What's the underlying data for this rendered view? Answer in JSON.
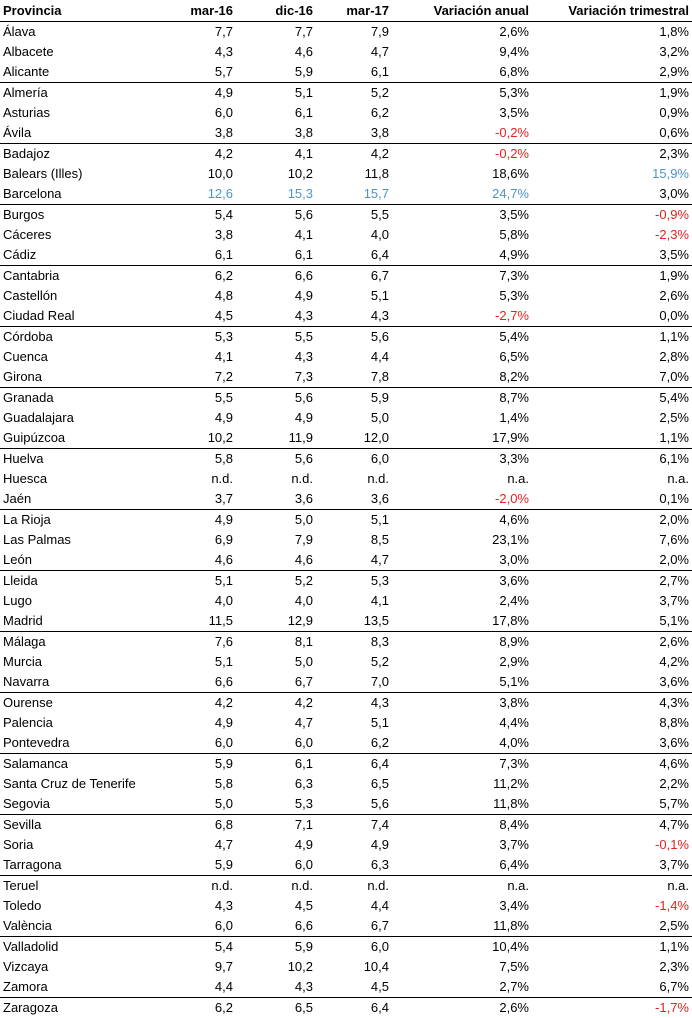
{
  "headers": [
    "Provincia",
    "mar-16",
    "dic-16",
    "mar-17",
    "Variación anual",
    "Variación trimestral"
  ],
  "colors": {
    "negative": "#e8201e",
    "highlight": "#4f93c6",
    "text": "#000000"
  },
  "rows": [
    {
      "cells": [
        "Álava",
        "7,7",
        "7,7",
        "7,9",
        "2,6%",
        "1,8%"
      ],
      "group_start": false,
      "styles": [
        "",
        "",
        "",
        "",
        "",
        ""
      ]
    },
    {
      "cells": [
        "Albacete",
        "4,3",
        "4,6",
        "4,7",
        "9,4%",
        "3,2%"
      ],
      "group_start": false,
      "styles": [
        "",
        "",
        "",
        "",
        "",
        ""
      ]
    },
    {
      "cells": [
        "Alicante",
        "5,7",
        "5,9",
        "6,1",
        "6,8%",
        "2,9%"
      ],
      "group_start": false,
      "styles": [
        "",
        "",
        "",
        "",
        "",
        ""
      ]
    },
    {
      "cells": [
        "Almería",
        "4,9",
        "5,1",
        "5,2",
        "5,3%",
        "1,9%"
      ],
      "group_start": true,
      "styles": [
        "",
        "",
        "",
        "",
        "",
        ""
      ]
    },
    {
      "cells": [
        "Asturias",
        "6,0",
        "6,1",
        "6,2",
        "3,5%",
        "0,9%"
      ],
      "group_start": false,
      "styles": [
        "",
        "",
        "",
        "",
        "",
        ""
      ]
    },
    {
      "cells": [
        "Ávila",
        "3,8",
        "3,8",
        "3,8",
        "-0,2%",
        "0,6%"
      ],
      "group_start": false,
      "styles": [
        "",
        "",
        "",
        "",
        "neg",
        ""
      ]
    },
    {
      "cells": [
        "Badajoz",
        "4,2",
        "4,1",
        "4,2",
        "-0,2%",
        "2,3%"
      ],
      "group_start": true,
      "styles": [
        "",
        "",
        "",
        "",
        "neg",
        ""
      ]
    },
    {
      "cells": [
        "Balears (Illes)",
        "10,0",
        "10,2",
        "11,8",
        "18,6%",
        "15,9%"
      ],
      "group_start": false,
      "styles": [
        "",
        "",
        "",
        "",
        "",
        "hi"
      ]
    },
    {
      "cells": [
        "Barcelona",
        "12,6",
        "15,3",
        "15,7",
        "24,7%",
        "3,0%"
      ],
      "group_start": false,
      "styles": [
        "",
        "hi",
        "hi",
        "hi",
        "hi",
        ""
      ]
    },
    {
      "cells": [
        "Burgos",
        "5,4",
        "5,6",
        "5,5",
        "3,5%",
        "-0,9%"
      ],
      "group_start": true,
      "styles": [
        "",
        "",
        "",
        "",
        "",
        "neg"
      ]
    },
    {
      "cells": [
        "Cáceres",
        "3,8",
        "4,1",
        "4,0",
        "5,8%",
        "-2,3%"
      ],
      "group_start": false,
      "styles": [
        "",
        "",
        "",
        "",
        "",
        "neg"
      ]
    },
    {
      "cells": [
        "Cádiz",
        "6,1",
        "6,1",
        "6,4",
        "4,9%",
        "3,5%"
      ],
      "group_start": false,
      "styles": [
        "",
        "",
        "",
        "",
        "",
        ""
      ]
    },
    {
      "cells": [
        "Cantabria",
        "6,2",
        "6,6",
        "6,7",
        "7,3%",
        "1,9%"
      ],
      "group_start": true,
      "styles": [
        "",
        "",
        "",
        "",
        "",
        ""
      ]
    },
    {
      "cells": [
        "Castellón",
        "4,8",
        "4,9",
        "5,1",
        "5,3%",
        "2,6%"
      ],
      "group_start": false,
      "styles": [
        "",
        "",
        "",
        "",
        "",
        ""
      ]
    },
    {
      "cells": [
        "Ciudad Real",
        "4,5",
        "4,3",
        "4,3",
        "-2,7%",
        "0,0%"
      ],
      "group_start": false,
      "styles": [
        "",
        "",
        "",
        "",
        "neg",
        ""
      ]
    },
    {
      "cells": [
        "Córdoba",
        "5,3",
        "5,5",
        "5,6",
        "5,4%",
        "1,1%"
      ],
      "group_start": true,
      "styles": [
        "",
        "",
        "",
        "",
        "",
        ""
      ]
    },
    {
      "cells": [
        "Cuenca",
        "4,1",
        "4,3",
        "4,4",
        "6,5%",
        "2,8%"
      ],
      "group_start": false,
      "styles": [
        "",
        "",
        "",
        "",
        "",
        ""
      ]
    },
    {
      "cells": [
        "Girona",
        "7,2",
        "7,3",
        "7,8",
        "8,2%",
        "7,0%"
      ],
      "group_start": false,
      "styles": [
        "",
        "",
        "",
        "",
        "",
        ""
      ]
    },
    {
      "cells": [
        "Granada",
        "5,5",
        "5,6",
        "5,9",
        "8,7%",
        "5,4%"
      ],
      "group_start": true,
      "styles": [
        "",
        "",
        "",
        "",
        "",
        ""
      ]
    },
    {
      "cells": [
        "Guadalajara",
        "4,9",
        "4,9",
        "5,0",
        "1,4%",
        "2,5%"
      ],
      "group_start": false,
      "styles": [
        "",
        "",
        "",
        "",
        "",
        ""
      ]
    },
    {
      "cells": [
        "Guipúzcoa",
        "10,2",
        "11,9",
        "12,0",
        "17,9%",
        "1,1%"
      ],
      "group_start": false,
      "styles": [
        "",
        "",
        "",
        "",
        "",
        ""
      ]
    },
    {
      "cells": [
        "Huelva",
        "5,8",
        "5,6",
        "6,0",
        "3,3%",
        "6,1%"
      ],
      "group_start": true,
      "styles": [
        "",
        "",
        "",
        "",
        "",
        ""
      ]
    },
    {
      "cells": [
        "Huesca",
        "n.d.",
        "n.d.",
        "n.d.",
        "n.a.",
        "n.a."
      ],
      "group_start": false,
      "styles": [
        "",
        "",
        "",
        "",
        "",
        ""
      ]
    },
    {
      "cells": [
        "Jaén",
        "3,7",
        "3,6",
        "3,6",
        "-2,0%",
        "0,1%"
      ],
      "group_start": false,
      "styles": [
        "",
        "",
        "",
        "",
        "neg",
        ""
      ]
    },
    {
      "cells": [
        "La Rioja",
        "4,9",
        "5,0",
        "5,1",
        "4,6%",
        "2,0%"
      ],
      "group_start": true,
      "styles": [
        "",
        "",
        "",
        "",
        "",
        ""
      ]
    },
    {
      "cells": [
        "Las Palmas",
        "6,9",
        "7,9",
        "8,5",
        "23,1%",
        "7,6%"
      ],
      "group_start": false,
      "styles": [
        "",
        "",
        "",
        "",
        "",
        ""
      ]
    },
    {
      "cells": [
        "León",
        "4,6",
        "4,6",
        "4,7",
        "3,0%",
        "2,0%"
      ],
      "group_start": false,
      "styles": [
        "",
        "",
        "",
        "",
        "",
        ""
      ]
    },
    {
      "cells": [
        "Lleida",
        "5,1",
        "5,2",
        "5,3",
        "3,6%",
        "2,7%"
      ],
      "group_start": true,
      "styles": [
        "",
        "",
        "",
        "",
        "",
        ""
      ]
    },
    {
      "cells": [
        "Lugo",
        "4,0",
        "4,0",
        "4,1",
        "2,4%",
        "3,7%"
      ],
      "group_start": false,
      "styles": [
        "",
        "",
        "",
        "",
        "",
        ""
      ]
    },
    {
      "cells": [
        "Madrid",
        "11,5",
        "12,9",
        "13,5",
        "17,8%",
        "5,1%"
      ],
      "group_start": false,
      "styles": [
        "",
        "",
        "",
        "",
        "",
        ""
      ]
    },
    {
      "cells": [
        "Málaga",
        "7,6",
        "8,1",
        "8,3",
        "8,9%",
        "2,6%"
      ],
      "group_start": true,
      "styles": [
        "",
        "",
        "",
        "",
        "",
        ""
      ]
    },
    {
      "cells": [
        "Murcia",
        "5,1",
        "5,0",
        "5,2",
        "2,9%",
        "4,2%"
      ],
      "group_start": false,
      "styles": [
        "",
        "",
        "",
        "",
        "",
        ""
      ]
    },
    {
      "cells": [
        "Navarra",
        "6,6",
        "6,7",
        "7,0",
        "5,1%",
        "3,6%"
      ],
      "group_start": false,
      "styles": [
        "",
        "",
        "",
        "",
        "",
        ""
      ]
    },
    {
      "cells": [
        "Ourense",
        "4,2",
        "4,2",
        "4,3",
        "3,8%",
        "4,3%"
      ],
      "group_start": true,
      "styles": [
        "",
        "",
        "",
        "",
        "",
        ""
      ]
    },
    {
      "cells": [
        "Palencia",
        "4,9",
        "4,7",
        "5,1",
        "4,4%",
        "8,8%"
      ],
      "group_start": false,
      "styles": [
        "",
        "",
        "",
        "",
        "",
        ""
      ]
    },
    {
      "cells": [
        "Pontevedra",
        "6,0",
        "6,0",
        "6,2",
        "4,0%",
        "3,6%"
      ],
      "group_start": false,
      "styles": [
        "",
        "",
        "",
        "",
        "",
        ""
      ]
    },
    {
      "cells": [
        "Salamanca",
        "5,9",
        "6,1",
        "6,4",
        "7,3%",
        "4,6%"
      ],
      "group_start": true,
      "styles": [
        "",
        "",
        "",
        "",
        "",
        ""
      ]
    },
    {
      "cells": [
        "Santa Cruz de Tenerife",
        "5,8",
        "6,3",
        "6,5",
        "11,2%",
        "2,2%"
      ],
      "group_start": false,
      "styles": [
        "",
        "",
        "",
        "",
        "",
        ""
      ]
    },
    {
      "cells": [
        "Segovia",
        "5,0",
        "5,3",
        "5,6",
        "11,8%",
        "5,7%"
      ],
      "group_start": false,
      "styles": [
        "",
        "",
        "",
        "",
        "",
        ""
      ]
    },
    {
      "cells": [
        "Sevilla",
        "6,8",
        "7,1",
        "7,4",
        "8,4%",
        "4,7%"
      ],
      "group_start": true,
      "styles": [
        "",
        "",
        "",
        "",
        "",
        ""
      ]
    },
    {
      "cells": [
        "Soria",
        "4,7",
        "4,9",
        "4,9",
        "3,7%",
        "-0,1%"
      ],
      "group_start": false,
      "styles": [
        "",
        "",
        "",
        "",
        "",
        "neg"
      ]
    },
    {
      "cells": [
        "Tarragona",
        "5,9",
        "6,0",
        "6,3",
        "6,4%",
        "3,7%"
      ],
      "group_start": false,
      "styles": [
        "",
        "",
        "",
        "",
        "",
        ""
      ]
    },
    {
      "cells": [
        "Teruel",
        "n.d.",
        "n.d.",
        "n.d.",
        "n.a.",
        "n.a."
      ],
      "group_start": true,
      "styles": [
        "",
        "",
        "",
        "",
        "",
        ""
      ]
    },
    {
      "cells": [
        "Toledo",
        "4,3",
        "4,5",
        "4,4",
        "3,4%",
        "-1,4%"
      ],
      "group_start": false,
      "styles": [
        "",
        "",
        "",
        "",
        "",
        "neg"
      ]
    },
    {
      "cells": [
        "València",
        "6,0",
        "6,6",
        "6,7",
        "11,8%",
        "2,5%"
      ],
      "group_start": false,
      "styles": [
        "",
        "",
        "",
        "",
        "",
        ""
      ]
    },
    {
      "cells": [
        "Valladolid",
        "5,4",
        "5,9",
        "6,0",
        "10,4%",
        "1,1%"
      ],
      "group_start": true,
      "styles": [
        "",
        "",
        "",
        "",
        "",
        ""
      ]
    },
    {
      "cells": [
        "Vizcaya",
        "9,7",
        "10,2",
        "10,4",
        "7,5%",
        "2,3%"
      ],
      "group_start": false,
      "styles": [
        "",
        "",
        "",
        "",
        "",
        ""
      ]
    },
    {
      "cells": [
        "Zamora",
        "4,4",
        "4,3",
        "4,5",
        "2,7%",
        "6,7%"
      ],
      "group_start": false,
      "styles": [
        "",
        "",
        "",
        "",
        "",
        ""
      ]
    },
    {
      "cells": [
        "Zaragoza",
        "6,2",
        "6,5",
        "6,4",
        "2,6%",
        "-1,7%"
      ],
      "group_start": true,
      "styles": [
        "",
        "",
        "",
        "",
        "",
        "neg"
      ]
    }
  ]
}
